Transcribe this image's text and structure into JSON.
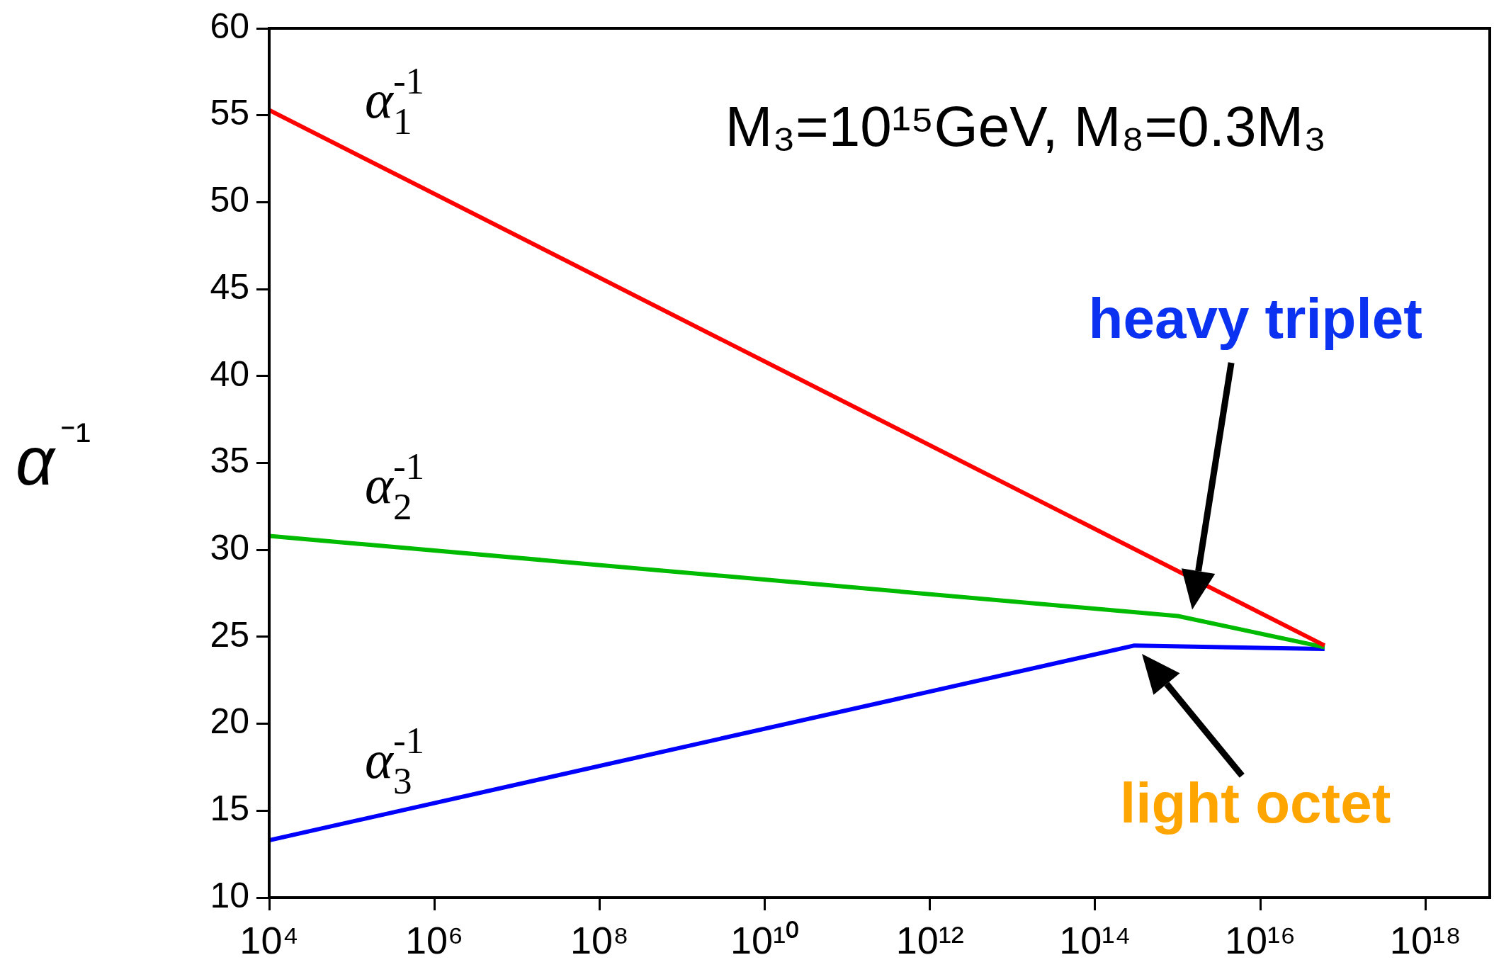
{
  "chart_data": {
    "type": "line",
    "ylabel": "α⁻¹",
    "log": "x",
    "xlim": [
      10000,
      6e+18
    ],
    "xticks": [
      {
        "value": 10000,
        "label": "10⁴"
      },
      {
        "value": 1000000,
        "label": "10⁶"
      },
      {
        "value": 100000000,
        "label": "10⁸"
      },
      {
        "value": 10000000000,
        "label": "10¹⁰"
      },
      {
        "value": 1000000000000,
        "label": "10¹²"
      },
      {
        "value": 100000000000000,
        "label": "10¹⁴"
      },
      {
        "value": 10000000000000000,
        "label": "10¹⁶"
      },
      {
        "value": 1000000000000000000,
        "label": "10¹⁸"
      }
    ],
    "ylim": [
      10,
      60
    ],
    "yticks": [
      10,
      15,
      20,
      25,
      30,
      35,
      40,
      45,
      50,
      55,
      60
    ],
    "marker": "none",
    "line_style": "solid",
    "series": [
      {
        "name": "α$_{1}$$^{-1}$",
        "color": "#ff0000",
        "x": [
          10000,
          6e+16
        ],
        "values": [
          55.3,
          24.5
        ]
      },
      {
        "name": "α$_{2}$$^{-1}$",
        "color": "#00bb00",
        "x": [
          10000,
          1000000000000000.0,
          6e+16
        ],
        "values": [
          30.8,
          26.2,
          24.4
        ]
      },
      {
        "name": "α$_{3}$$^{-1}$",
        "color": "#0000ff",
        "x": [
          10000,
          300000000000000.0,
          6e+16
        ],
        "values": [
          13.3,
          24.5,
          24.3
        ]
      }
    ],
    "annotations": [
      "M₃=10¹⁵GeV, M₈=0.3M₃",
      "heavy triplet",
      "light octet"
    ]
  }
}
